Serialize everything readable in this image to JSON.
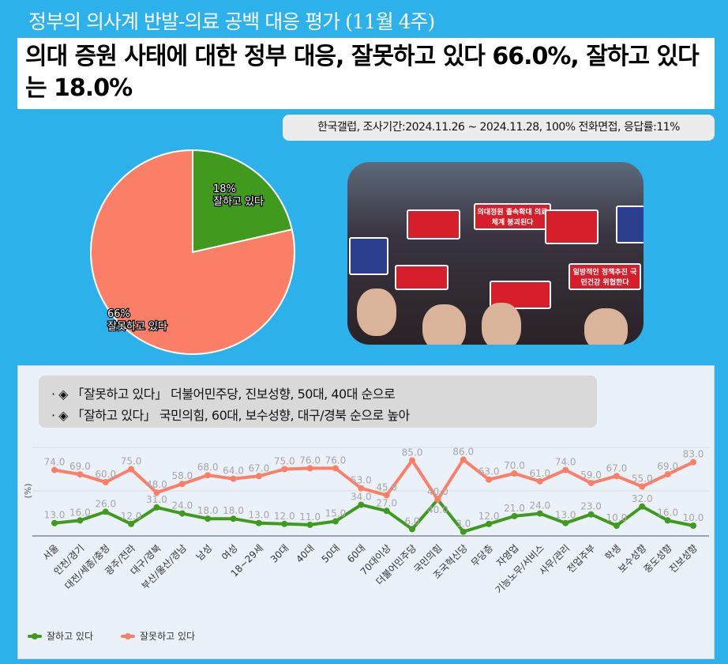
{
  "top_title": "정부의 의사계 반발-의료 공백 대응 평가 (11월 4주)",
  "headline": "의대 증원 사태에 대한 정부 대응, 잘못하고 있다 66.0%, 잘하고 있다는 18.0%",
  "info": "한국갤럽, 조사기간:2024.11.26 ~ 2024.11.28, 100% 전화면접, 응답률:11%",
  "pie": {
    "slices": [
      {
        "label": "잘하고 있다",
        "pct_label": "18%",
        "value": 18,
        "color": "#3f9a1e"
      },
      {
        "label": "잘못하고 있다",
        "pct_label": "66%",
        "value": 66,
        "color": "#fb7f66"
      }
    ]
  },
  "photo": {
    "placards": [
      "의대정원 졸속확대 의료체계 붕괴된다",
      "일방적인 정책추진 국민건강 위협한다"
    ]
  },
  "bullets": [
    "· ◈ 「잘못하고 있다」 더불어민주당, 진보성향, 50대, 40대 순으로",
    "· ◈ 「잘하고 있다」 국민의힘, 60대, 보수성향, 대구/경북 순으로 높아"
  ],
  "chart_data": {
    "type": "line",
    "ylabel": "(%)",
    "ylim": [
      0,
      100
    ],
    "grid": true,
    "legend_position": "bottom-left",
    "categories": [
      "서울",
      "인천/경기",
      "대전/세종/충청",
      "광주/전라",
      "대구/경북",
      "부산/울산/경남",
      "남성",
      "여성",
      "18~29세",
      "30대",
      "40대",
      "50대",
      "60대",
      "70대이상",
      "더불어민주당",
      "국민의힘",
      "조국혁신당",
      "무당층",
      "자영업",
      "기능노무/서비스",
      "사무/관리",
      "전업주부",
      "학생",
      "보수성향",
      "중도성향",
      "진보성향"
    ],
    "series": [
      {
        "name": "잘하고 있다",
        "color": "#3f9a1e",
        "values": [
          13,
          16,
          26,
          12,
          31,
          24,
          18,
          18,
          13,
          12,
          11,
          15,
          34,
          27,
          6,
          40,
          3,
          12,
          21,
          24,
          13,
          23,
          10,
          32,
          16,
          10
        ]
      },
      {
        "name": "잘못하고 있다",
        "color": "#fb7f66",
        "values": [
          74,
          69,
          60,
          75,
          48,
          58,
          68,
          64,
          67,
          75,
          76,
          76,
          53,
          45,
          85,
          40,
          86,
          63,
          70,
          61,
          74,
          59,
          67,
          55,
          69,
          83
        ]
      }
    ]
  }
}
